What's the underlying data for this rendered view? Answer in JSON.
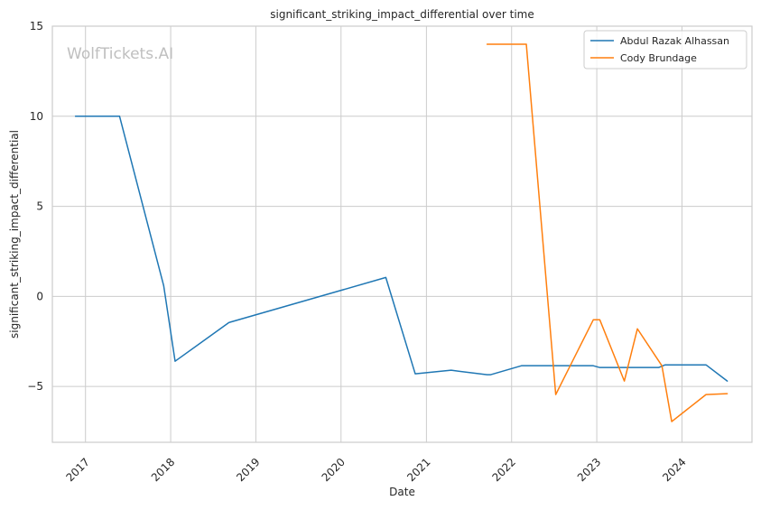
{
  "watermark": "WolfTickets.AI",
  "chart_data": {
    "type": "line",
    "title": "significant_striking_impact_differential over time",
    "xlabel": "Date",
    "ylabel": "significant_striking_impact_differential",
    "xlim": [
      "2016-08-12",
      "2024-10-27"
    ],
    "ylim": [
      -8.1,
      15
    ],
    "x_ticks": [
      {
        "date": "2017-01-01",
        "label": "2017"
      },
      {
        "date": "2018-01-01",
        "label": "2018"
      },
      {
        "date": "2019-01-01",
        "label": "2019"
      },
      {
        "date": "2020-01-01",
        "label": "2020"
      },
      {
        "date": "2021-01-01",
        "label": "2021"
      },
      {
        "date": "2022-01-01",
        "label": "2022"
      },
      {
        "date": "2023-01-01",
        "label": "2023"
      },
      {
        "date": "2024-01-01",
        "label": "2024"
      }
    ],
    "y_ticks": [
      {
        "value": 15,
        "label": "15"
      },
      {
        "value": 10,
        "label": "10"
      },
      {
        "value": 5,
        "label": "5"
      },
      {
        "value": 0,
        "label": "0"
      },
      {
        "value": -5,
        "label": "−5"
      }
    ],
    "grid": true,
    "legend_position": "top-right",
    "series": [
      {
        "name": "Abdul Razak Alhassan",
        "color": "#1f77b4",
        "points": [
          {
            "x": "2016-11-19",
            "y": 10.0
          },
          {
            "x": "2017-05-27",
            "y": 10.0
          },
          {
            "x": "2017-12-02",
            "y": 0.6
          },
          {
            "x": "2018-01-20",
            "y": -3.6
          },
          {
            "x": "2018-09-08",
            "y": -1.45
          },
          {
            "x": "2020-07-11",
            "y": 1.05
          },
          {
            "x": "2020-11-14",
            "y": -4.3
          },
          {
            "x": "2021-04-17",
            "y": -4.1
          },
          {
            "x": "2021-09-18",
            "y": -4.35
          },
          {
            "x": "2021-10-02",
            "y": -4.35
          },
          {
            "x": "2022-02-12",
            "y": -3.85
          },
          {
            "x": "2022-12-17",
            "y": -3.85
          },
          {
            "x": "2023-01-14",
            "y": -3.95
          },
          {
            "x": "2023-09-23",
            "y": -3.95
          },
          {
            "x": "2023-10-21",
            "y": -3.8
          },
          {
            "x": "2024-04-13",
            "y": -3.8
          },
          {
            "x": "2024-07-13",
            "y": -4.7
          }
        ]
      },
      {
        "name": "Cody Brundage",
        "color": "#ff7f0e",
        "points": [
          {
            "x": "2021-09-18",
            "y": 14.0
          },
          {
            "x": "2022-03-05",
            "y": 14.0
          },
          {
            "x": "2022-07-09",
            "y": -5.45
          },
          {
            "x": "2022-12-17",
            "y": -1.3
          },
          {
            "x": "2023-01-14",
            "y": -1.3
          },
          {
            "x": "2023-04-29",
            "y": -4.7
          },
          {
            "x": "2023-06-24",
            "y": -1.8
          },
          {
            "x": "2023-10-07",
            "y": -3.85
          },
          {
            "x": "2023-11-18",
            "y": -6.95
          },
          {
            "x": "2024-04-13",
            "y": -5.45
          },
          {
            "x": "2024-07-13",
            "y": -5.4
          }
        ]
      }
    ]
  }
}
